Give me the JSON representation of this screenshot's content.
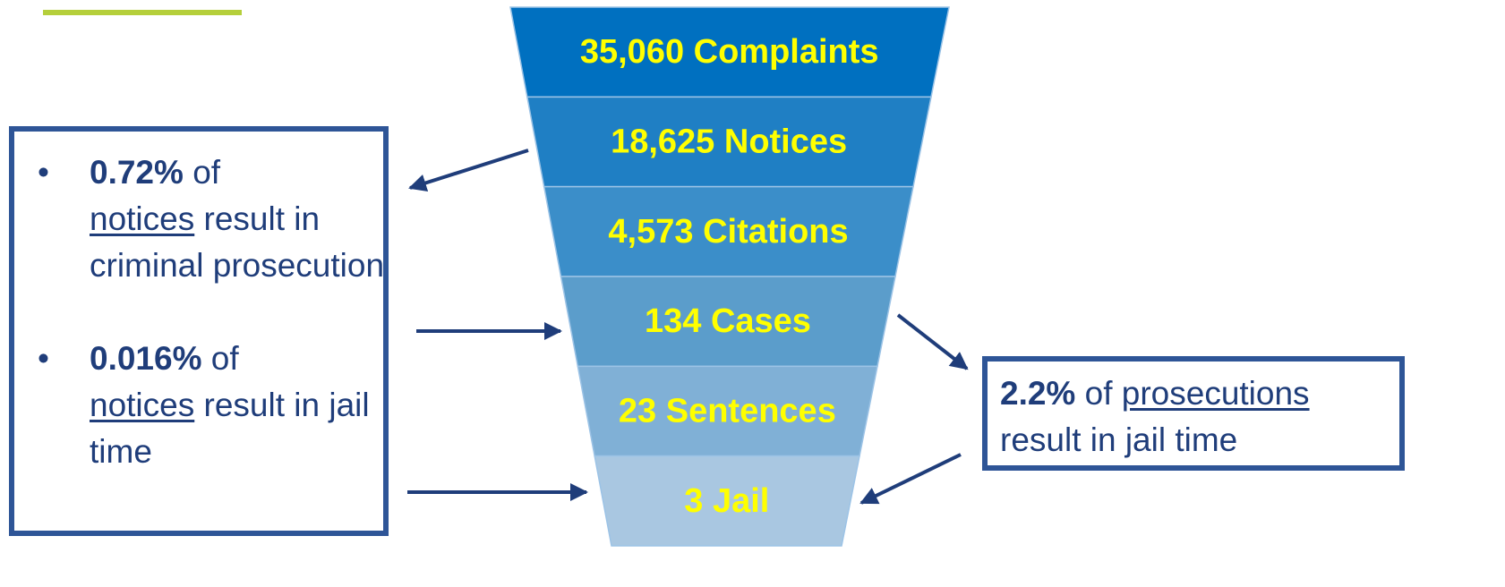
{
  "funnel": {
    "stages": [
      {
        "label": "35,060 Complaints"
      },
      {
        "label": "18,625 Notices"
      },
      {
        "label": "4,573 Citations"
      },
      {
        "label": "134 Cases"
      },
      {
        "label": "23 Sentences"
      },
      {
        "label": "3 Jail"
      }
    ]
  },
  "left_box": {
    "bullets": [
      {
        "bold": "0.72%",
        "text1": " of ",
        "underlined": "notices",
        "text2": " result in criminal prosecution"
      },
      {
        "bold": "0.016%",
        "text1": " of ",
        "underlined": "notices",
        "text2": " result in jail time"
      }
    ]
  },
  "right_box": {
    "bold": "2.2%",
    "text1": " of ",
    "underlined": "prosecutions",
    "text2": " result in jail time"
  }
}
